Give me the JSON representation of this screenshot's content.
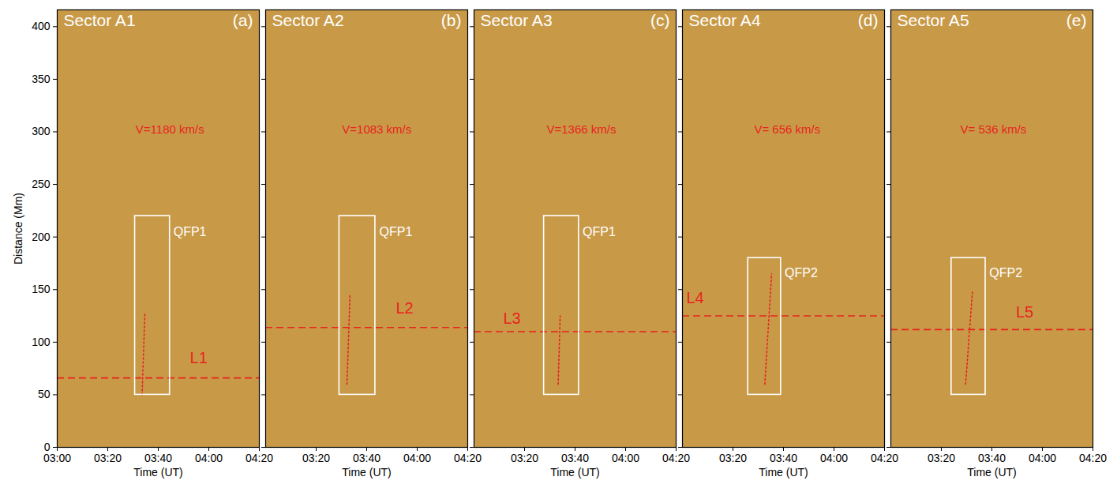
{
  "chart_data": [
    {
      "type": "image",
      "title": "Sector A1",
      "panel": "(a)",
      "x_label": "Time (UT)",
      "y_label": "Distance (Mm)",
      "xlim": [
        180,
        260
      ],
      "xticks": [
        {
          "value": 180,
          "label": "03:00"
        },
        {
          "value": 200,
          "label": "03:20"
        },
        {
          "value": 220,
          "label": "03:40"
        },
        {
          "value": 240,
          "label": "04:00"
        },
        {
          "value": 260,
          "label": "04:20"
        }
      ],
      "ylim": [
        0,
        416
      ],
      "yticks": [
        0,
        50,
        100,
        150,
        200,
        250,
        300,
        350,
        400
      ],
      "color": "#c89a48",
      "velocity": {
        "text": "V=1180 km/s",
        "x": 224.6,
        "y": 302
      },
      "box": {
        "label": "QFP1",
        "x": [
          210.8,
          224.6
        ],
        "y": [
          50,
          220
        ],
        "label_x": 226,
        "label_y": 205
      },
      "line": {
        "label": "L1",
        "y": 66,
        "label_x": 236,
        "label_y": 85
      },
      "fit": {
        "x": [
          213.6,
          214.7
        ],
        "y": [
          50,
          128
        ]
      }
    },
    {
      "type": "image",
      "title": "Sector A2",
      "panel": "(b)",
      "x_label": "Time (UT)",
      "xlim": [
        180,
        260
      ],
      "xticks": [
        {
          "value": 200,
          "label": "03:20"
        },
        {
          "value": 220,
          "label": "03:40"
        },
        {
          "value": 240,
          "label": "04:00"
        },
        {
          "value": 260,
          "label": "04:20"
        }
      ],
      "ylim": [
        0,
        416
      ],
      "yticks": [
        0,
        50,
        100,
        150,
        200,
        250,
        300,
        350,
        400
      ],
      "tick_labels": "x",
      "color": "#c89a48",
      "velocity": {
        "text": "V=1083 km/s",
        "x": 224,
        "y": 302
      },
      "box": {
        "label": "QFP1",
        "x": [
          209.2,
          223.4
        ],
        "y": [
          50,
          220
        ],
        "label_x": 225,
        "label_y": 205
      },
      "line": {
        "label": "L2",
        "y": 114,
        "label_x": 235,
        "label_y": 132
      },
      "fit": {
        "x": [
          212.2,
          213.4
        ],
        "y": [
          60,
          145
        ]
      }
    },
    {
      "type": "image",
      "title": "Sector A3",
      "panel": "(c)",
      "x_label": "Time (UT)",
      "xlim": [
        180,
        260
      ],
      "xticks": [
        {
          "value": 200,
          "label": "03:20"
        },
        {
          "value": 220,
          "label": "03:40"
        },
        {
          "value": 240,
          "label": "04:00"
        },
        {
          "value": 260,
          "label": "04:20"
        }
      ],
      "ylim": [
        0,
        416
      ],
      "yticks": [
        0,
        50,
        100,
        150,
        200,
        250,
        300,
        350,
        400
      ],
      "tick_labels": "x",
      "color": "#c89a48",
      "velocity": {
        "text": "V=1366 km/s",
        "x": 222.5,
        "y": 302
      },
      "box": {
        "label": "QFP1",
        "x": [
          207.7,
          221.5
        ],
        "y": [
          50,
          220
        ],
        "label_x": 223,
        "label_y": 205
      },
      "line": {
        "label": "L3",
        "y": 110,
        "label_x": 195,
        "label_y": 122
      },
      "fit": {
        "x": [
          213.3,
          214.1
        ],
        "y": [
          60,
          125
        ]
      }
    },
    {
      "type": "image",
      "title": "Sector A4",
      "panel": "(d)",
      "x_label": "Time (UT)",
      "xlim": [
        180,
        260
      ],
      "xticks": [
        {
          "value": 200,
          "label": "03:20"
        },
        {
          "value": 220,
          "label": "03:40"
        },
        {
          "value": 240,
          "label": "04:00"
        },
        {
          "value": 260,
          "label": "04:20"
        }
      ],
      "ylim": [
        0,
        416
      ],
      "yticks": [
        0,
        50,
        100,
        150,
        200,
        250,
        300,
        350,
        400
      ],
      "tick_labels": "x",
      "color": "#c89a48",
      "velocity": {
        "text": "V= 656 km/s",
        "x": 221.5,
        "y": 302
      },
      "box": {
        "label": "QFP2",
        "x": [
          206,
          219
        ],
        "y": [
          50,
          180
        ],
        "label_x": 220.5,
        "label_y": 166
      },
      "line": {
        "label": "L4",
        "y": 125,
        "label_x": 185,
        "label_y": 142
      },
      "fit": {
        "x": [
          212.6,
          215.3
        ],
        "y": [
          60,
          165
        ]
      }
    },
    {
      "type": "image",
      "title": "Sector A5",
      "panel": "(e)",
      "x_label": "Time (UT)",
      "xlim": [
        180,
        260
      ],
      "xticks": [
        {
          "value": 200,
          "label": "03:20"
        },
        {
          "value": 220,
          "label": "03:40"
        },
        {
          "value": 240,
          "label": "04:00"
        },
        {
          "value": 260,
          "label": "04:20"
        }
      ],
      "ylim": [
        0,
        416
      ],
      "yticks": [
        0,
        50,
        100,
        150,
        200,
        250,
        300,
        350,
        400
      ],
      "tick_labels": "x",
      "color": "#c89a48",
      "velocity": {
        "text": "V= 536 km/s",
        "x": 220.6,
        "y": 302
      },
      "box": {
        "label": "QFP2",
        "x": [
          204,
          217.5
        ],
        "y": [
          50,
          180
        ],
        "label_x": 219,
        "label_y": 166
      },
      "line": {
        "label": "L5",
        "y": 112,
        "label_x": 233,
        "label_y": 128
      },
      "fit": {
        "x": [
          209.6,
          212.3
        ],
        "y": [
          60,
          148
        ]
      }
    }
  ]
}
